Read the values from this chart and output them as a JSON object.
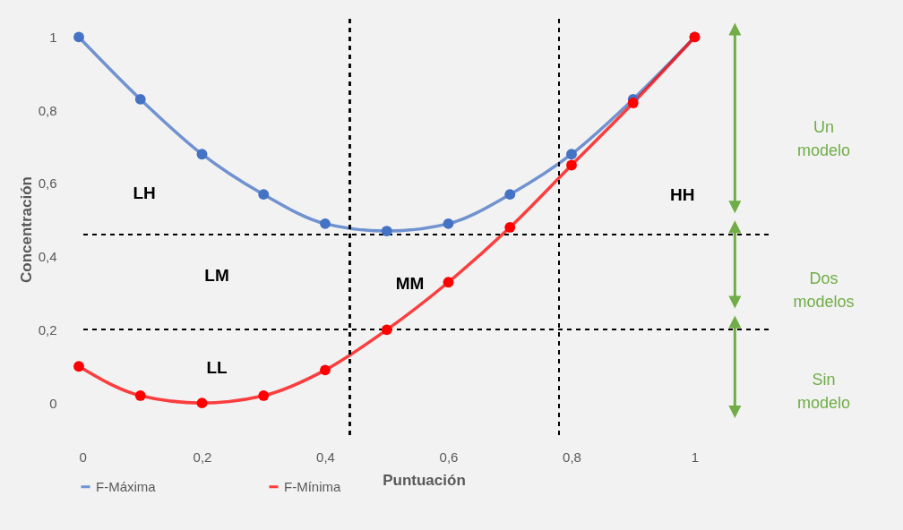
{
  "chart_data": {
    "type": "line",
    "xlabel": "Puntuación",
    "ylabel": "Concentración",
    "x": [
      0,
      0.1,
      0.2,
      0.3,
      0.4,
      0.5,
      0.6,
      0.7,
      0.8,
      0.9,
      1
    ],
    "series": [
      {
        "name": "F-Máxima",
        "color": "#4472c4",
        "values": [
          1,
          0.83,
          0.68,
          0.57,
          0.49,
          0.47,
          0.49,
          0.57,
          0.68,
          0.83,
          1
        ]
      },
      {
        "name": "F-Mínima",
        "color": "#ff0000",
        "values": [
          0.1,
          0.02,
          0,
          0.02,
          0.09,
          0.2,
          0.33,
          0.48,
          0.65,
          0.82,
          1
        ]
      }
    ],
    "xlim": [
      0,
      1.12
    ],
    "ylim": [
      -0.1,
      1.05
    ],
    "xticks": [
      0,
      {
        "value": 0.2,
        "label": "0,2"
      },
      {
        "value": 0.4,
        "label": "0,4"
      },
      {
        "value": 0.6,
        "label": "0,6"
      },
      {
        "value": 0.8,
        "label": "0,8"
      },
      1
    ],
    "yticks": [
      0,
      {
        "value": 0.2,
        "label": "0,2"
      },
      {
        "value": 0.4,
        "label": "0,4"
      },
      {
        "value": 0.6,
        "label": "0,6"
      },
      {
        "value": 0.8,
        "label": "0,8"
      },
      1
    ],
    "ref_lines": [
      {
        "axis": "y",
        "value": 0.46,
        "line_style": "dashed",
        "color": "#000000"
      },
      {
        "axis": "y",
        "value": 0.2,
        "line_style": "dashed",
        "color": "#000000"
      },
      {
        "axis": "x",
        "value": 0.44,
        "line_style": "dashed",
        "color": "#000000"
      },
      {
        "axis": "x",
        "value": 0.78,
        "line_style": "dashed",
        "color": "#000000"
      }
    ],
    "annotations": [
      "LH",
      "LM",
      "LL",
      "MM",
      "HH",
      "Un modelo",
      "Dos modelos",
      "Sin modelo"
    ],
    "grid": false,
    "legend": "bottom",
    "marker": "circle",
    "line_style": "solid"
  }
}
